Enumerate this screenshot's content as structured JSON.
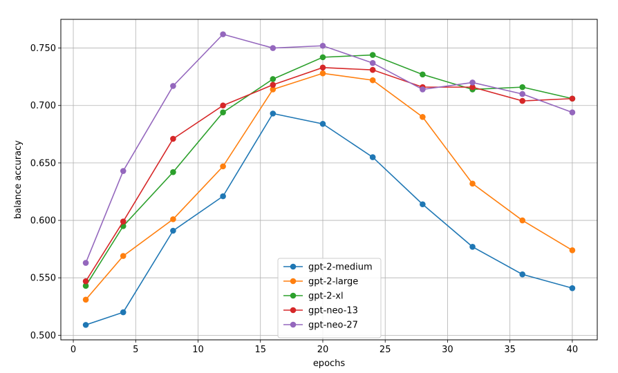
{
  "chart_data": {
    "type": "line",
    "xlabel": "epochs",
    "ylabel": "balance accuracy",
    "xlim": [
      -1,
      42
    ],
    "ylim": [
      0.496,
      0.775
    ],
    "xticks": [
      0,
      5,
      10,
      15,
      20,
      25,
      30,
      35,
      40
    ],
    "yticks": [
      0.5,
      0.55,
      0.6,
      0.65,
      0.7,
      0.75
    ],
    "xtick_labels": [
      "0",
      "5",
      "10",
      "15",
      "20",
      "25",
      "30",
      "35",
      "40"
    ],
    "ytick_labels": [
      "0.500",
      "0.550",
      "0.600",
      "0.650",
      "0.700",
      "0.750"
    ],
    "grid": true,
    "legend_position": "lower center",
    "x": [
      1,
      4,
      8,
      12,
      16,
      20,
      24,
      28,
      32,
      36,
      40
    ],
    "series": [
      {
        "name": "gpt-2-medium",
        "color": "#1f77b4",
        "values": [
          0.509,
          0.52,
          0.591,
          0.621,
          0.693,
          0.684,
          0.655,
          0.614,
          0.577,
          0.553,
          0.541
        ]
      },
      {
        "name": "gpt-2-large",
        "color": "#ff7f0e",
        "values": [
          0.531,
          0.569,
          0.601,
          0.647,
          0.714,
          0.728,
          0.722,
          0.69,
          0.632,
          0.6,
          0.574
        ]
      },
      {
        "name": "gpt-2-xl",
        "color": "#2ca02c",
        "values": [
          0.543,
          0.595,
          0.642,
          0.694,
          0.723,
          0.742,
          0.744,
          0.727,
          0.714,
          0.716,
          0.706
        ]
      },
      {
        "name": "gpt-neo-13",
        "color": "#d62728",
        "values": [
          0.547,
          0.599,
          0.671,
          0.7,
          0.718,
          0.733,
          0.731,
          0.716,
          0.716,
          0.704,
          0.706
        ]
      },
      {
        "name": "gpt-neo-27",
        "color": "#9467bd",
        "values": [
          0.563,
          0.643,
          0.717,
          0.762,
          0.75,
          0.752,
          0.737,
          0.714,
          0.72,
          0.71,
          0.694
        ]
      }
    ]
  }
}
